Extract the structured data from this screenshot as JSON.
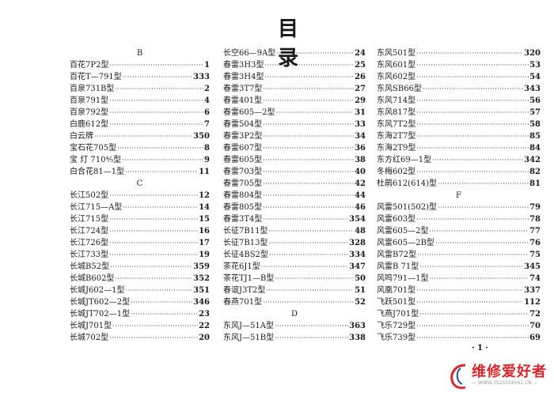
{
  "title": "目 录",
  "columns": [
    {
      "lines": [
        {
          "type": "header",
          "text": "B"
        },
        {
          "name": "百花7P2型",
          "page": "1"
        },
        {
          "name": "百花T—791型",
          "page": "333"
        },
        {
          "name": "百泉731B型",
          "page": "2"
        },
        {
          "name": "百泉791型",
          "page": "4"
        },
        {
          "name": "百泉792型",
          "page": "6"
        },
        {
          "name": "白鹿612型",
          "page": "7"
        },
        {
          "name": "白云牌",
          "page": "350"
        },
        {
          "name": "宝石花705型",
          "page": "8"
        },
        {
          "name": "宝 灯 710⁴⁄₅型",
          "page": "9"
        },
        {
          "name": "白合花81—1型",
          "page": "11"
        },
        {
          "type": "header",
          "text": "C"
        },
        {
          "name": "长江502型",
          "page": "12"
        },
        {
          "name": "长江715—A型",
          "page": "14"
        },
        {
          "name": "长江715型",
          "page": "15"
        },
        {
          "name": "长江724型",
          "page": "16"
        },
        {
          "name": "长江726型",
          "page": "17"
        },
        {
          "name": "长江733型",
          "page": "19"
        },
        {
          "name": "长城B52型",
          "page": "359"
        },
        {
          "name": "长城B602型",
          "page": "352"
        },
        {
          "name": "长城J602—1型",
          "page": "351"
        },
        {
          "name": "长城JT602—2型",
          "page": "346"
        },
        {
          "name": "长城JT702—1型",
          "page": "23"
        },
        {
          "name": "长城J701型",
          "page": "22"
        },
        {
          "name": "长城702型",
          "page": "20"
        }
      ]
    },
    {
      "lines": [
        {
          "name": "长空66—9A型",
          "page": "24"
        },
        {
          "name": "春雷3H3型",
          "page": "25"
        },
        {
          "name": "春雷3H4型",
          "page": "26"
        },
        {
          "name": "春雷3T7型",
          "page": "27"
        },
        {
          "name": "春雷401型",
          "page": "29"
        },
        {
          "name": "春雷605—2型",
          "page": "31"
        },
        {
          "name": "春雷504型",
          "page": "33"
        },
        {
          "name": "春雷3P2型",
          "page": "34"
        },
        {
          "name": "春雷607型",
          "page": "36"
        },
        {
          "name": "春雷605型",
          "page": "38"
        },
        {
          "name": "春雷703型",
          "page": "40"
        },
        {
          "name": "春雷705型",
          "page": "42"
        },
        {
          "name": "春雷804型",
          "page": "44"
        },
        {
          "name": "春雷805型",
          "page": "46"
        },
        {
          "name": "春雷3T4型",
          "page": "354"
        },
        {
          "name": "长征7B11型",
          "page": "48"
        },
        {
          "name": "长征7B13型",
          "page": "328"
        },
        {
          "name": "长征4BS2型",
          "page": "334"
        },
        {
          "name": "茶花6J1型",
          "page": "347"
        },
        {
          "name": "茶花TJ1—B型",
          "page": "50"
        },
        {
          "name": "春谊J3T2型",
          "page": "51"
        },
        {
          "name": "春燕701型",
          "page": "52"
        },
        {
          "type": "header",
          "text": "D"
        },
        {
          "name": "东风J—51A型",
          "page": "363"
        },
        {
          "name": "东风J—51B型",
          "page": "338"
        }
      ]
    },
    {
      "lines": [
        {
          "name": "东风501型",
          "page": "320"
        },
        {
          "name": "东风601型",
          "page": "53"
        },
        {
          "name": "东风602型",
          "page": "54"
        },
        {
          "name": "东风SB66型",
          "page": "343"
        },
        {
          "name": "东风714型",
          "page": "56"
        },
        {
          "name": "东风817型",
          "page": "57"
        },
        {
          "name": "东风7T2型",
          "page": "58"
        },
        {
          "name": "东海2T7型",
          "page": "85"
        },
        {
          "name": "东海2T9型",
          "page": "84"
        },
        {
          "name": "东方红69—1型",
          "page": "342"
        },
        {
          "name": "冬梅602型",
          "page": "82"
        },
        {
          "name": "杜鹃612(614)型",
          "page": "81"
        },
        {
          "type": "header",
          "text": "F"
        },
        {
          "name": "风雷501(502)型",
          "page": "79"
        },
        {
          "name": "风雷603型",
          "page": "78"
        },
        {
          "name": "风雷605—2型",
          "page": "77"
        },
        {
          "name": "风雷605—2B型",
          "page": "76"
        },
        {
          "name": "风雷B72型",
          "page": "75"
        },
        {
          "name": "风雷B 71型",
          "page": "345"
        },
        {
          "name": "风鸣791—1型",
          "page": "74"
        },
        {
          "name": "风凰701型",
          "page": "337"
        },
        {
          "name": "飞跃501型",
          "page": "112"
        },
        {
          "name": "飞燕J701型",
          "page": "72"
        },
        {
          "name": "飞乐729型",
          "page": "70"
        },
        {
          "name": "飞乐739型",
          "page": "69"
        }
      ]
    }
  ],
  "page_number": "· 1 ·",
  "watermark": {
    "name": "维修爱好者",
    "url": "— WWW.3525558561.CN —",
    "color": "#d8262b"
  }
}
